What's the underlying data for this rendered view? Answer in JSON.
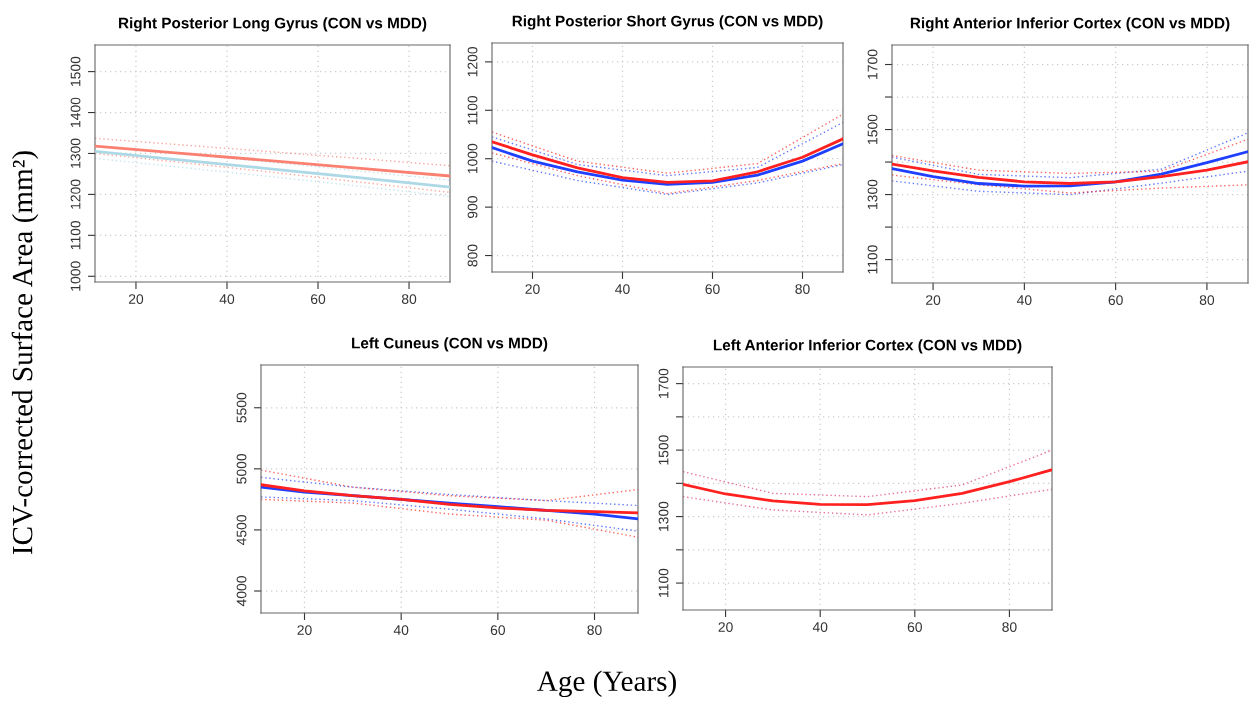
{
  "chart_data": [
    {
      "type": "line",
      "title": "Right Posterior Long Gyrus (CON vs MDD)",
      "ylabel": "ICV-corrected Surface Area (mm²)",
      "x": [
        11,
        30,
        50,
        70,
        89
      ],
      "xlim": [
        11,
        89
      ],
      "ylim": [
        986,
        1565
      ],
      "xticks": [
        20,
        40,
        60,
        80
      ],
      "yticks": [
        1000,
        1100,
        1200,
        1300,
        1400,
        1500
      ],
      "grid": true,
      "line_style": "solid",
      "series": [
        {
          "color": "#add8e6",
          "values": [
            1288,
            1266,
            1243,
            1219,
            1195
          ],
          "line_style": "dotted"
        },
        {
          "color": "#add8e6",
          "values": [
            1320,
            1299,
            1278,
            1256,
            1235
          ],
          "line_style": "dotted"
        },
        {
          "color": "#fa8072",
          "values": [
            1300,
            1278,
            1254,
            1229,
            1205
          ],
          "line_style": "dotted"
        },
        {
          "color": "#fa8072",
          "values": [
            1337,
            1321,
            1304,
            1287,
            1270
          ],
          "line_style": "dotted"
        },
        {
          "color": "#add8e6",
          "values": [
            1305,
            1284,
            1262,
            1240,
            1218
          ]
        },
        {
          "color": "#fa8072",
          "values": [
            1318,
            1300,
            1282,
            1263,
            1245
          ]
        }
      ]
    },
    {
      "type": "line",
      "title": "Right Posterior Short Gyrus (CON vs MDD)",
      "x": [
        11,
        20,
        30,
        40,
        50,
        60,
        70,
        80,
        89
      ],
      "xlim": [
        11,
        89
      ],
      "ylim": [
        766,
        1239
      ],
      "xticks": [
        20,
        40,
        60,
        80
      ],
      "yticks": [
        800,
        900,
        1000,
        1100,
        1200
      ],
      "grid": true,
      "line_style": "solid",
      "series": [
        {
          "color": "#1f3fff",
          "x": [
            11,
            30,
            50,
            70,
            89
          ],
          "values": [
            995,
            955,
            926,
            950,
            988
          ],
          "line_style": "dotted"
        },
        {
          "color": "#1f3fff",
          "x": [
            11,
            30,
            50,
            70,
            89
          ],
          "values": [
            1045,
            988,
            965,
            982,
            1075
          ],
          "line_style": "dotted"
        },
        {
          "color": "#ff2020",
          "x": [
            11,
            30,
            50,
            70,
            89
          ],
          "values": [
            1012,
            965,
            928,
            955,
            990
          ],
          "line_style": "dotted"
        },
        {
          "color": "#ff2020",
          "x": [
            11,
            30,
            50,
            70,
            89
          ],
          "values": [
            1055,
            995,
            970,
            990,
            1092
          ],
          "line_style": "dotted"
        },
        {
          "color": "#1f3fff",
          "values": [
            1023,
            995,
            973,
            956,
            947,
            951,
            966,
            995,
            1031
          ]
        },
        {
          "color": "#ff2020",
          "values": [
            1035,
            1008,
            981,
            961,
            951,
            954,
            973,
            1003,
            1041
          ]
        }
      ]
    },
    {
      "type": "line",
      "title": "Right Anterior Inferior Cortex (CON vs MDD)",
      "x": [
        11,
        20,
        30,
        40,
        50,
        60,
        70,
        80,
        89
      ],
      "xlim": [
        11,
        89
      ],
      "ylim": [
        1028,
        1760
      ],
      "xticks": [
        20,
        40,
        60,
        80
      ],
      "yticks": [
        1100,
        {
          "value": 1200,
          "label": null
        },
        1300,
        {
          "value": 1400,
          "label": null
        },
        1500,
        {
          "value": 1600,
          "label": null
        },
        1700
      ],
      "grid": true,
      "line_style": "solid",
      "series": [
        {
          "color": "#1f3fff",
          "x": [
            11,
            30,
            50,
            70,
            89
          ],
          "values": [
            1342,
            1310,
            1300,
            1335,
            1372
          ],
          "line_style": "dotted"
        },
        {
          "color": "#1f3fff",
          "x": [
            11,
            30,
            50,
            70,
            89
          ],
          "values": [
            1415,
            1362,
            1352,
            1378,
            1490
          ],
          "line_style": "dotted"
        },
        {
          "color": "#ff2020",
          "x": [
            11,
            30,
            50,
            70,
            89
          ],
          "values": [
            1360,
            1330,
            1305,
            1320,
            1330
          ],
          "line_style": "dotted"
        },
        {
          "color": "#ff2020",
          "x": [
            11,
            30,
            50,
            70,
            89
          ],
          "values": [
            1420,
            1375,
            1365,
            1372,
            1470
          ],
          "line_style": "dotted"
        },
        {
          "color": "#1f3fff",
          "values": [
            1380,
            1355,
            1334,
            1326,
            1327,
            1339,
            1363,
            1398,
            1432
          ]
        },
        {
          "color": "#ff2020",
          "values": [
            1394,
            1373,
            1353,
            1339,
            1334,
            1339,
            1355,
            1375,
            1401
          ]
        }
      ]
    },
    {
      "type": "line",
      "title": "Left Cuneus (CON vs MDD)",
      "xlabel": "Age (Years)",
      "x": [
        11,
        20,
        30,
        40,
        50,
        60,
        70,
        80,
        89
      ],
      "xlim": [
        11,
        89
      ],
      "ylim": [
        3820,
        5850
      ],
      "xticks": [
        20,
        40,
        60,
        80
      ],
      "yticks": [
        4000,
        4500,
        5000,
        5500
      ],
      "grid": true,
      "line_style": "solid",
      "series": [
        {
          "color": "#1f3fff",
          "x": [
            11,
            30,
            50,
            70,
            89
          ],
          "values": [
            4770,
            4740,
            4670,
            4590,
            4490
          ],
          "line_style": "dotted"
        },
        {
          "color": "#1f3fff",
          "x": [
            11,
            30,
            50,
            70,
            89
          ],
          "values": [
            4930,
            4850,
            4790,
            4740,
            4700
          ],
          "line_style": "dotted"
        },
        {
          "color": "#ff2020",
          "x": [
            11,
            30,
            50,
            70,
            89
          ],
          "values": [
            4750,
            4720,
            4630,
            4580,
            4440
          ],
          "line_style": "dotted"
        },
        {
          "color": "#ff2020",
          "x": [
            11,
            30,
            50,
            70,
            89
          ],
          "values": [
            4990,
            4850,
            4780,
            4740,
            4830
          ],
          "line_style": "dotted"
        },
        {
          "color": "#1f3fff",
          "values": [
            4850,
            4810,
            4780,
            4750,
            4720,
            4690,
            4660,
            4630,
            4590
          ]
        },
        {
          "color": "#ff2020",
          "values": [
            4870,
            4820,
            4780,
            4750,
            4710,
            4680,
            4660,
            4650,
            4640
          ]
        }
      ]
    },
    {
      "type": "line",
      "title": "Left Anterior Inferior Cortex (CON vs MDD)",
      "x": [
        11,
        20,
        30,
        40,
        50,
        60,
        70,
        80,
        89
      ],
      "xlim": [
        11,
        89
      ],
      "ylim": [
        1019,
        1750
      ],
      "xticks": [
        20,
        40,
        60,
        80
      ],
      "yticks": [
        1100,
        {
          "value": 1200,
          "label": null
        },
        1300,
        {
          "value": 1400,
          "label": null
        },
        1500,
        {
          "value": 1600,
          "label": null
        },
        1700
      ],
      "grid": true,
      "line_style": "solid",
      "series": [
        {
          "color": "#e0307a",
          "x": [
            11,
            30,
            50,
            70,
            89
          ],
          "values": [
            1360,
            1320,
            1305,
            1340,
            1382
          ],
          "line_style": "dotted"
        },
        {
          "color": "#e0307a",
          "x": [
            11,
            30,
            50,
            70,
            89
          ],
          "values": [
            1435,
            1370,
            1360,
            1395,
            1500
          ],
          "line_style": "dotted"
        },
        {
          "color": "#ff2020",
          "values": [
            1397,
            1368,
            1347,
            1337,
            1336,
            1348,
            1370,
            1405,
            1441
          ]
        }
      ]
    }
  ]
}
